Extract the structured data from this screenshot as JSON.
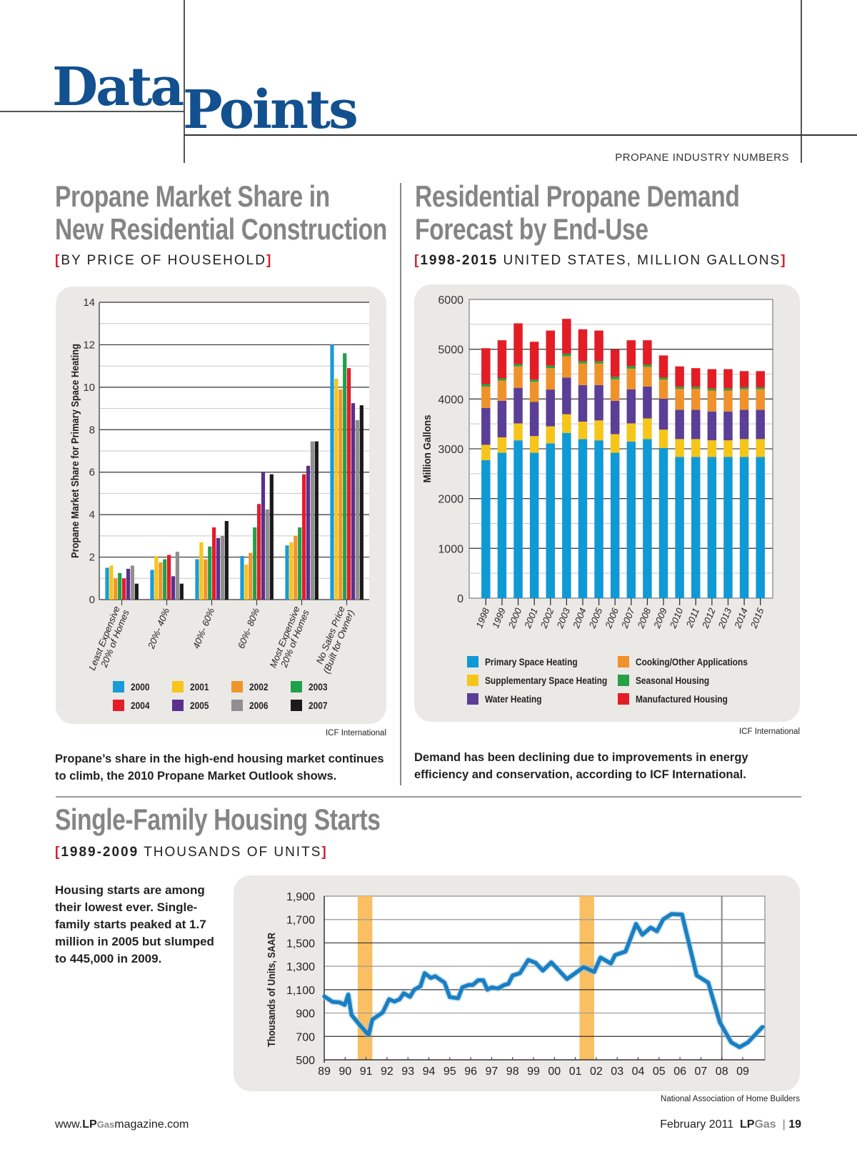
{
  "header": {
    "logo_word1": "Data",
    "logo_word2": "Points",
    "kicker": "PROPANE INDUSTRY NUMBERS"
  },
  "colors": {
    "logo_blue": "#12508f",
    "bracket_red": "#d0202a",
    "title_gray": "#858585",
    "panel_bg": "#ebe9e6"
  },
  "market_share": {
    "title_line1": "Propane Market Share in",
    "title_line2": "New Residential Construction",
    "subtitle": "BY PRICE OF HOUSEHOLD",
    "source": "ICF International",
    "caption_line1": "Propane’s share in the high-end housing market continues",
    "caption_line2": "to climb, the 2010 Propane Market Outlook shows."
  },
  "demand": {
    "title_line1": "Residential Propane Demand",
    "title_line2": "Forecast by End-Use",
    "subtitle_bold": "1998-2015",
    "subtitle_rest": " UNITED STATES, MILLION GALLONS",
    "source": "ICF International",
    "caption_line1": "Demand has been declining due to improvements in energy",
    "caption_line2": "efficiency and conservation, according to ICF International."
  },
  "housing": {
    "title": "Single-Family Housing Starts",
    "subtitle_bold": "1989-2009",
    "subtitle_rest": " THOUSANDS OF UNITS",
    "side_text_lines": [
      "Housing starts are among",
      "their lowest ever. Single-",
      "family starts peaked at 1.7",
      "million in 2005 but slumped",
      "to 445,000 in 2009."
    ],
    "source": "National Association of Home Builders"
  },
  "footer": {
    "url_pre": "www.",
    "url_lp": "LP",
    "url_gas": "Gas",
    "url_post": "magazine.com",
    "date": "February 2011",
    "brand_lp": "LP",
    "brand_gas": "Gas",
    "page": "19"
  },
  "chart_data": [
    {
      "type": "bar",
      "title": "Propane Market Share in New Residential Construction",
      "ylabel": "Propane Market Share for Primary Space Heating",
      "xlabel": "",
      "ylim": [
        0,
        14
      ],
      "yticks": [
        0,
        2,
        4,
        6,
        8,
        10,
        12,
        14
      ],
      "grid": true,
      "legend_position": "bottom",
      "categories": [
        [
          "Least Expensive",
          "20% of Homes"
        ],
        [
          "20%- 40%"
        ],
        [
          "40%- 60%"
        ],
        [
          "60%- 80%"
        ],
        [
          "Most Expensive",
          "20% of Homes"
        ],
        [
          "No Sales Price",
          "(Built for Owner)"
        ]
      ],
      "series": [
        {
          "name": "2000",
          "color": "#1a9ad7",
          "values": [
            1.5,
            1.4,
            1.9,
            2.05,
            2.55,
            12.0
          ]
        },
        {
          "name": "2001",
          "color": "#f7c51b",
          "values": [
            1.6,
            2.05,
            2.7,
            1.65,
            2.7,
            10.4
          ]
        },
        {
          "name": "2002",
          "color": "#f0952c",
          "values": [
            1.0,
            1.75,
            1.9,
            2.2,
            3.0,
            9.9
          ]
        },
        {
          "name": "2003",
          "color": "#21a04a",
          "values": [
            1.25,
            1.9,
            2.5,
            3.4,
            3.4,
            11.6
          ]
        },
        {
          "name": "2004",
          "color": "#e31d2a",
          "values": [
            1.0,
            2.1,
            3.4,
            4.5,
            5.9,
            10.9
          ]
        },
        {
          "name": "2005",
          "color": "#5b2f8f",
          "values": [
            1.45,
            1.1,
            2.9,
            6.0,
            6.3,
            9.25
          ]
        },
        {
          "name": "2006",
          "color": "#8f8f8f",
          "values": [
            1.6,
            2.25,
            3.0,
            4.25,
            7.45,
            8.45
          ]
        },
        {
          "name": "2007",
          "color": "#1a1a1a",
          "values": [
            0.75,
            0.75,
            3.7,
            5.9,
            7.45,
            9.15
          ]
        }
      ]
    },
    {
      "type": "bar",
      "stacked": true,
      "title": "Residential Propane Demand Forecast by End-Use",
      "ylabel": "Million Gallons",
      "xlabel": "",
      "ylim": [
        0,
        6000
      ],
      "yticks": [
        0,
        1000,
        2000,
        3000,
        4000,
        5000,
        6000
      ],
      "grid": true,
      "legend_position": "bottom",
      "categories": [
        "1998",
        "1999",
        "2000",
        "2001",
        "2002",
        "2003",
        "2004",
        "2005",
        "2006",
        "2007",
        "2008",
        "2009",
        "2010",
        "2011",
        "2012",
        "2013",
        "2014",
        "2015"
      ],
      "series": [
        {
          "name": "Primary Space Heating",
          "color": "#0f9ad6",
          "values": [
            2770,
            2920,
            3170,
            2920,
            3110,
            3320,
            3195,
            3170,
            2920,
            3145,
            3195,
            3015,
            2835,
            2835,
            2835,
            2835,
            2835,
            2835
          ]
        },
        {
          "name": "Supplementary Space Heating",
          "color": "#f6c51a",
          "values": [
            310,
            310,
            340,
            335,
            340,
            375,
            350,
            400,
            375,
            365,
            415,
            370,
            360,
            360,
            335,
            335,
            360,
            360
          ]
        },
        {
          "name": "Water Heating",
          "color": "#5b3e96",
          "values": [
            740,
            735,
            715,
            685,
            740,
            735,
            735,
            710,
            670,
            685,
            640,
            620,
            590,
            590,
            580,
            580,
            590,
            590
          ]
        },
        {
          "name": "Cooking/Other Applications",
          "color": "#f0922b",
          "values": [
            430,
            405,
            430,
            405,
            430,
            430,
            435,
            435,
            430,
            415,
            395,
            385,
            420,
            420,
            420,
            420,
            410,
            410
          ]
        },
        {
          "name": "Seasonal Housing",
          "color": "#27a046",
          "values": [
            50,
            45,
            45,
            45,
            50,
            50,
            45,
            45,
            50,
            50,
            45,
            40,
            40,
            40,
            40,
            40,
            40,
            40
          ]
        },
        {
          "name": "Manufactured Housing",
          "color": "#e31d25",
          "values": [
            720,
            765,
            820,
            760,
            705,
            700,
            640,
            615,
            550,
            520,
            490,
            445,
            410,
            375,
            390,
            390,
            325,
            325
          ]
        }
      ]
    },
    {
      "type": "line",
      "title": "Single-Family Housing Starts",
      "ylabel": "Thousands of Units, SAAR",
      "xlabel": "",
      "ylim": [
        500,
        1900
      ],
      "yticks": [
        500,
        700,
        900,
        1100,
        1300,
        1500,
        1700,
        1900
      ],
      "ytick_labels": [
        "500",
        "700",
        "900",
        "1,100",
        "1,300",
        "1,500",
        "1,700",
        "1,900"
      ],
      "xlim": [
        1989,
        2010
      ],
      "xtick_labels": [
        "89",
        "90",
        "91",
        "92",
        "93",
        "94",
        "95",
        "96",
        "97",
        "98",
        "99",
        "00",
        "01",
        "02",
        "03",
        "04",
        "05",
        "06",
        "07",
        "08",
        "09"
      ],
      "grid": true,
      "recessions": [
        [
          1990.6,
          1991.3
        ],
        [
          2001.2,
          2001.9
        ]
      ],
      "marker_line_year": 2008,
      "series": [
        {
          "name": "Single-family starts",
          "color": "#1a7fc1",
          "x": [
            1989.0,
            1989.4,
            1989.75,
            1989.98,
            1990.15,
            1990.3,
            1990.67,
            1991.12,
            1991.3,
            1991.8,
            1992.1,
            1992.35,
            1992.6,
            1992.8,
            1993.1,
            1993.3,
            1993.6,
            1993.8,
            1994.1,
            1994.3,
            1994.75,
            1995.0,
            1995.4,
            1995.6,
            1995.9,
            1996.1,
            1996.35,
            1996.6,
            1996.8,
            1997.0,
            1997.3,
            1997.6,
            1997.8,
            1998.0,
            1998.35,
            1998.75,
            1999.1,
            1999.45,
            1999.85,
            2000.6,
            2001.4,
            2001.9,
            2002.2,
            2002.7,
            2002.9,
            2003.4,
            2003.9,
            2004.2,
            2004.6,
            2004.9,
            2005.2,
            2005.6,
            2006.1,
            2006.8,
            2007.35,
            2007.9,
            2008.45,
            2008.85,
            2009.25,
            2009.95
          ],
          "y": [
            1043,
            996,
            990,
            970,
            1058,
            885,
            804,
            712,
            845,
            906,
            1018,
            998,
            1018,
            1069,
            1039,
            1100,
            1130,
            1241,
            1200,
            1215,
            1160,
            1037,
            1027,
            1120,
            1140,
            1140,
            1180,
            1180,
            1100,
            1120,
            1110,
            1140,
            1150,
            1221,
            1241,
            1354,
            1330,
            1263,
            1334,
            1191,
            1293,
            1252,
            1375,
            1324,
            1396,
            1426,
            1662,
            1570,
            1631,
            1600,
            1702,
            1747,
            1743,
            1222,
            1160,
            823,
            649,
            608,
            649,
            782
          ]
        }
      ]
    }
  ]
}
